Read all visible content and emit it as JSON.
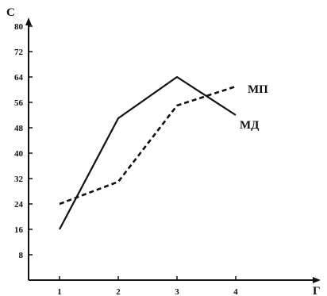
{
  "chart_data": {
    "type": "line",
    "title": "",
    "xlabel": "Г",
    "ylabel": "С",
    "x_ticks": [
      "1",
      "2",
      "3",
      "4"
    ],
    "y_ticks": [
      "8",
      "16",
      "24",
      "32",
      "40",
      "48",
      "56",
      "64",
      "72",
      "80"
    ],
    "xlim": [
      0.45,
      5.0
    ],
    "ylim": [
      0,
      82
    ],
    "grid": false,
    "series": [
      {
        "name": "МД",
        "style": "solid",
        "color": "#111111",
        "x": [
          1,
          2,
          3,
          4
        ],
        "y": [
          16,
          51,
          64,
          52
        ]
      },
      {
        "name": "МП",
        "style": "dashed",
        "color": "#111111",
        "x": [
          1,
          2,
          3,
          4
        ],
        "y": [
          24,
          31,
          55,
          61
        ]
      }
    ]
  }
}
